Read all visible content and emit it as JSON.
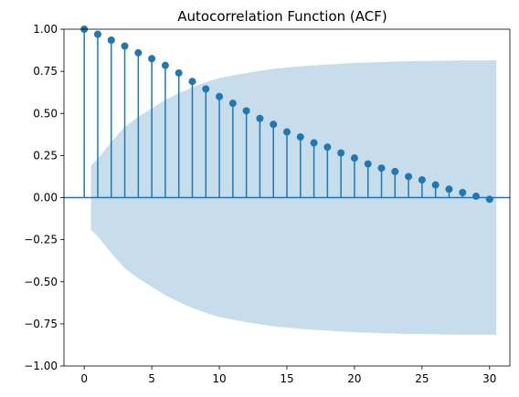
{
  "chart_data": {
    "type": "stem",
    "title": "Autocorrelation Function (ACF)",
    "xlabel": "",
    "ylabel": "",
    "xlim": [
      -1.5,
      31.5
    ],
    "ylim": [
      -1.0,
      1.0
    ],
    "xticks": [
      0,
      5,
      10,
      15,
      20,
      25,
      30
    ],
    "yticks": [
      -1.0,
      -0.75,
      -0.5,
      -0.25,
      0.0,
      0.25,
      0.5,
      0.75,
      1.0
    ],
    "ytick_labels": [
      "−1.00",
      "−0.75",
      "−0.50",
      "−0.25",
      "0.00",
      "0.25",
      "0.50",
      "0.75",
      "1.00"
    ],
    "lags": [
      0,
      1,
      2,
      3,
      4,
      5,
      6,
      7,
      8,
      9,
      10,
      11,
      12,
      13,
      14,
      15,
      16,
      17,
      18,
      19,
      20,
      21,
      22,
      23,
      24,
      25,
      26,
      27,
      28,
      29,
      30
    ],
    "values": [
      1.0,
      0.97,
      0.935,
      0.9,
      0.86,
      0.825,
      0.785,
      0.74,
      0.69,
      0.645,
      0.6,
      0.56,
      0.515,
      0.47,
      0.435,
      0.39,
      0.36,
      0.325,
      0.3,
      0.265,
      0.235,
      0.2,
      0.175,
      0.155,
      0.125,
      0.105,
      0.075,
      0.05,
      0.03,
      0.008,
      -0.01
    ],
    "confidence_band": {
      "lags": [
        0.5,
        1,
        2,
        3,
        4,
        5,
        6,
        7,
        8,
        9,
        10,
        12,
        14,
        16,
        18,
        20,
        22,
        24,
        26,
        28,
        30.5
      ],
      "upper": [
        0.19,
        0.23,
        0.33,
        0.42,
        0.48,
        0.53,
        0.58,
        0.62,
        0.655,
        0.685,
        0.71,
        0.74,
        0.765,
        0.78,
        0.79,
        0.8,
        0.805,
        0.81,
        0.812,
        0.815,
        0.815
      ]
    },
    "grid": false,
    "colors": {
      "series": "#1f77b4",
      "band": "#1f77b4"
    }
  }
}
